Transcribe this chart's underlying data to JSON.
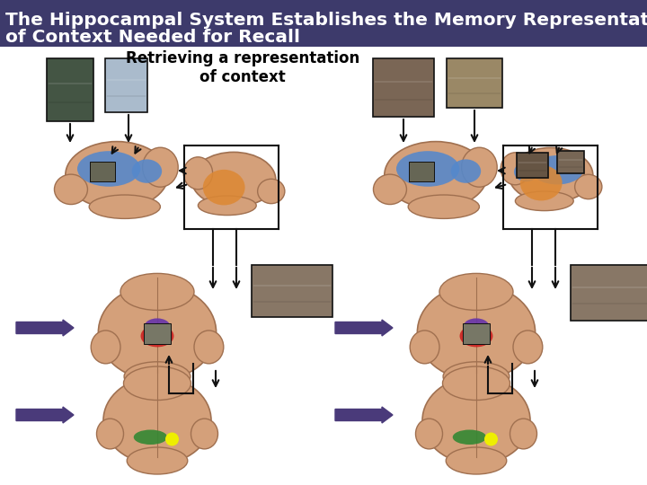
{
  "title_line1": "The Hippocampal System Establishes the Memory Representation",
  "title_line2": "of Context Needed for Recall",
  "subtitle": "Retrieving a representation\nof context",
  "title_bg_color": "#3d3a6b",
  "title_text_color": "#ffffff",
  "bg_color": "#ffffff",
  "subtitle_text_color": "#000000",
  "title_fontsize": 14.5,
  "subtitle_fontsize": 12,
  "arrow_color": "#4a3a7a",
  "brain_skin": "#d4a07a",
  "brain_edge": "#a07050",
  "blue_region": "#5588cc",
  "orange_region": "#dd8833",
  "red_region": "#cc2222",
  "purple_region": "#6633aa",
  "green_region": "#338833",
  "yellow_region": "#eeee00",
  "black": "#111111",
  "photo1_color": "#445544",
  "photo2_color": "#aabbcc",
  "photo3_color": "#7a6655",
  "photo4_color": "#9a8866",
  "photo5_color": "#887766",
  "photo6_color": "#887766",
  "figsize": [
    7.2,
    5.4
  ],
  "dpi": 100
}
